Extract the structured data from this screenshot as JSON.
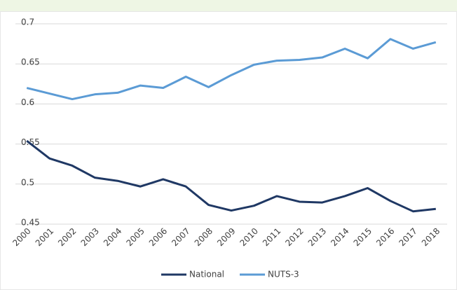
{
  "chart_data": {
    "type": "line",
    "categories": [
      "2000",
      "2001",
      "2002",
      "2003",
      "2004",
      "2005",
      "2006",
      "2007",
      "2008",
      "2009",
      "2010",
      "2011",
      "2012",
      "2013",
      "2014",
      "2015",
      "2016",
      "2017",
      "2018"
    ],
    "series": [
      {
        "name": "National",
        "color": "#1f3864",
        "values": [
          0.554,
          0.532,
          0.523,
          0.508,
          0.504,
          0.497,
          0.506,
          0.497,
          0.474,
          0.467,
          0.473,
          0.485,
          0.478,
          0.477,
          0.485,
          0.495,
          0.479,
          0.466,
          0.469
        ]
      },
      {
        "name": "NUTS-3",
        "color": "#5b9bd5",
        "values": [
          0.62,
          0.613,
          0.606,
          0.612,
          0.614,
          0.623,
          0.62,
          0.634,
          0.621,
          0.636,
          0.649,
          0.654,
          0.655,
          0.658,
          0.669,
          0.657,
          0.681,
          0.669,
          0.677
        ]
      }
    ],
    "ylim": [
      0.45,
      0.7
    ],
    "yticks": [
      0.45,
      0.5,
      0.55,
      0.6,
      0.65,
      0.7
    ],
    "grid": true,
    "legend": "bottom"
  }
}
